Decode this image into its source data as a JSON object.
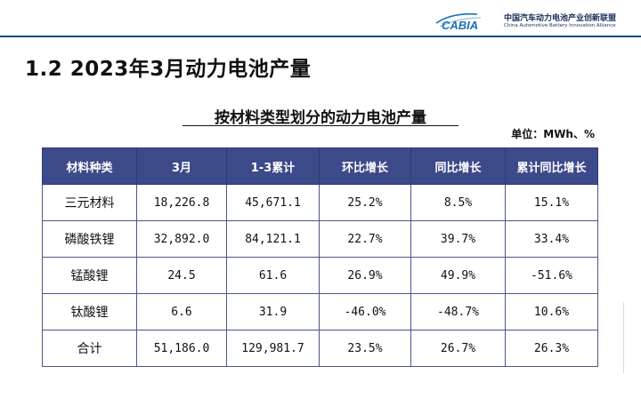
{
  "logo": {
    "brand": "CABIA",
    "name_cn": "中国汽车动力电池产业创新联盟",
    "name_en": "China Automotive Battery Innovation Alliance"
  },
  "page_title": "1.2 2023年3月动力电池产量",
  "table_title": "按材料类型划分的动力电池产量",
  "unit": "单位：MWh、%",
  "table": {
    "headers": [
      "材料种类",
      "3月",
      "1-3累计",
      "环比增长",
      "同比增长",
      "累计同比增长"
    ],
    "rows": [
      [
        "三元材料",
        "18,226.8",
        "45,671.1",
        "25.2%",
        "8.5%",
        "15.1%"
      ],
      [
        "磷酸铁锂",
        "32,892.0",
        "84,121.1",
        "22.7%",
        "39.7%",
        "33.4%"
      ],
      [
        "锰酸锂",
        "24.5",
        "61.6",
        "26.9%",
        "49.9%",
        "-51.6%"
      ],
      [
        "钛酸锂",
        "6.6",
        "31.9",
        "-46.0%",
        "-48.7%",
        "10.6%"
      ],
      [
        "合计",
        "51,186.0",
        "129,981.7",
        "23.5%",
        "26.7%",
        "26.3%"
      ]
    ]
  },
  "colors": {
    "header_bg": "#3d4a8a",
    "accent_line": "#1a4b8c",
    "logo_blue": "#1a6fb5"
  }
}
